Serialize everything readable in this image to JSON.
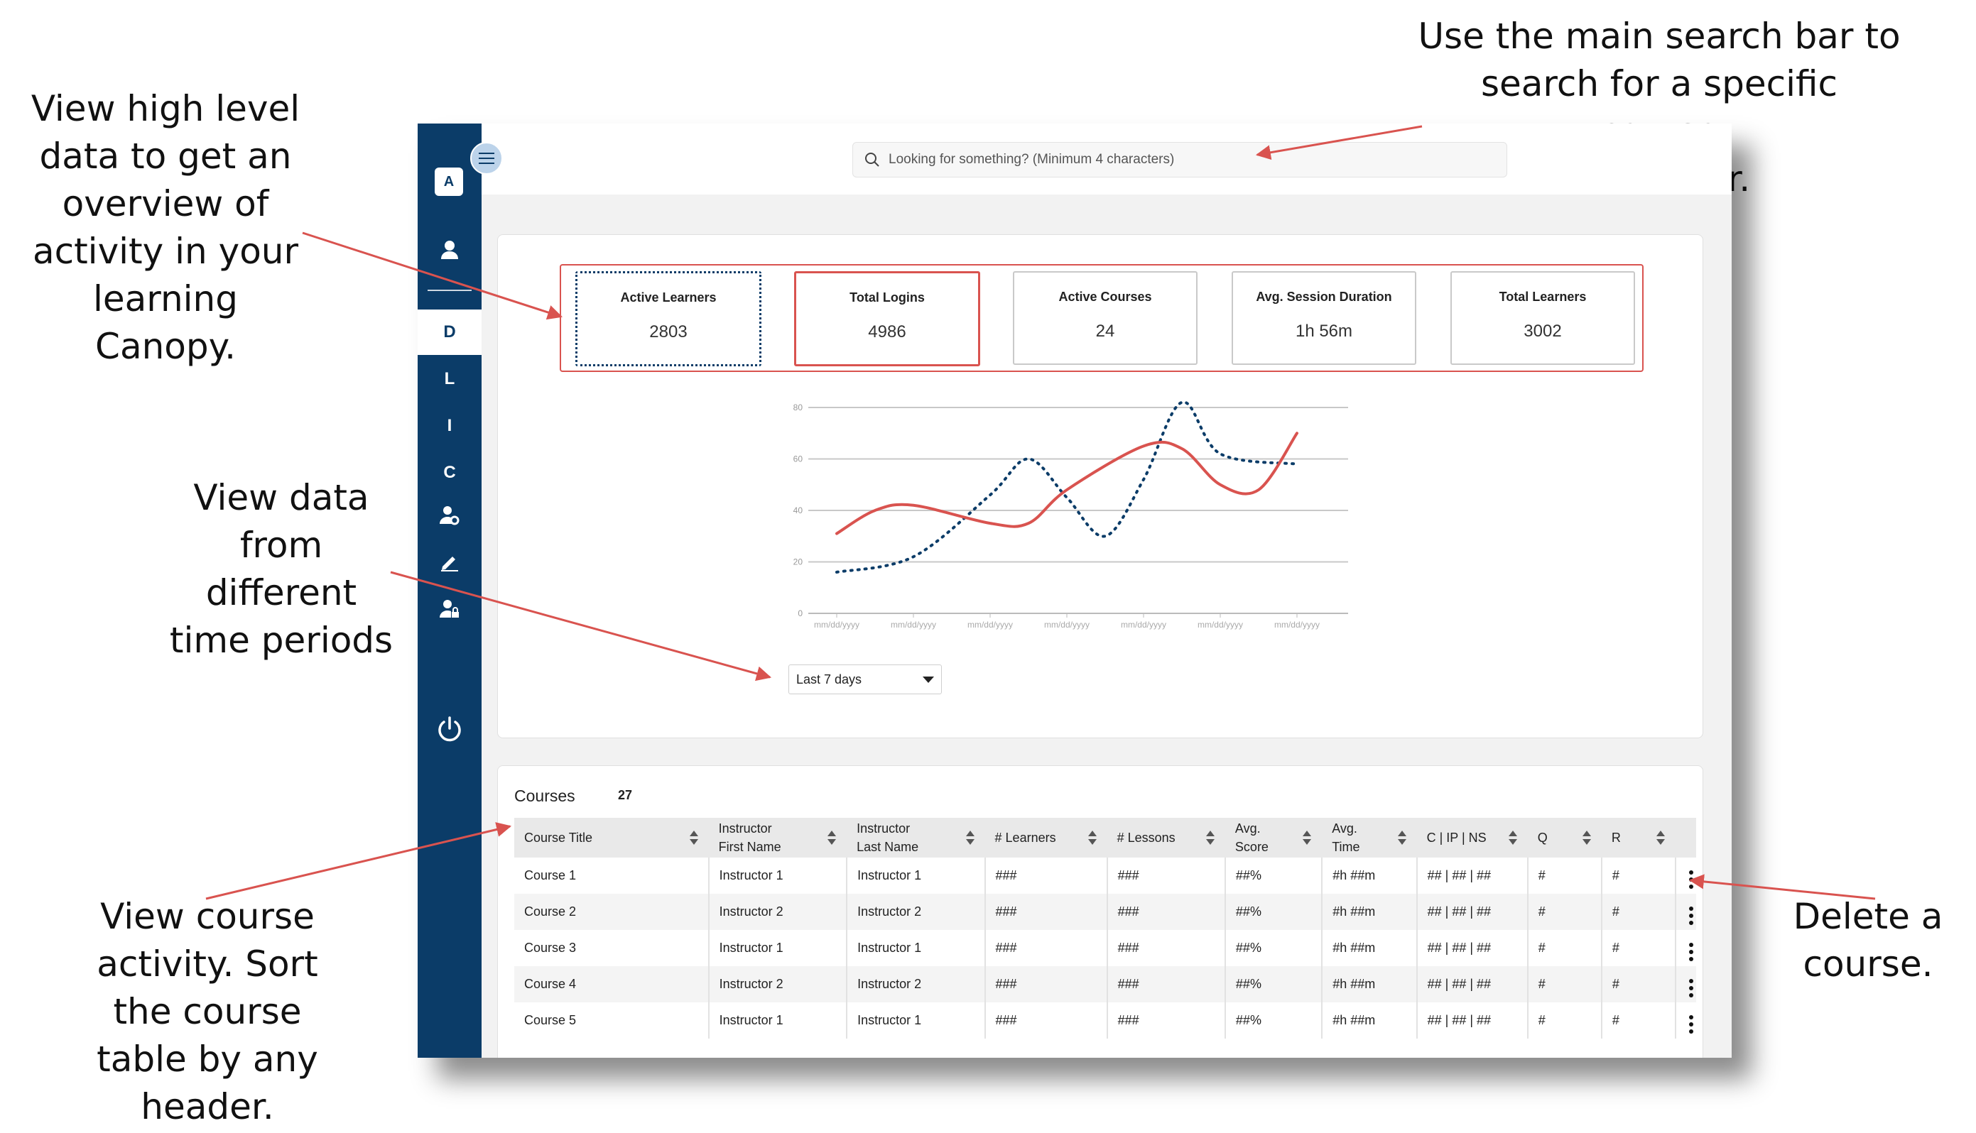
{
  "annotations": {
    "search_note": "Use the main search bar to\nsearch for a specific course\nor learner.",
    "overview_note": "View high level\ndata to get an\noverview of\nactivity in your\nlearning\nCanopy.",
    "time_note": "View data\nfrom\ndifferent\ntime periods",
    "table_note": "View course\nactivity. Sort\nthe course\ntable by any\nheader.",
    "delete_note": "Delete a\ncourse."
  },
  "sidebar": {
    "avatar_letter": "A",
    "items": [
      "D",
      "L",
      "I",
      "C"
    ],
    "active_item": "D"
  },
  "search": {
    "placeholder": "Looking for something? (Minimum 4 characters)"
  },
  "stats": [
    {
      "label": "Active Learners",
      "value": "2803"
    },
    {
      "label": "Total Logins",
      "value": "4986"
    },
    {
      "label": "Active Courses",
      "value": "24"
    },
    {
      "label": "Avg. Session Duration",
      "value": "1h 56m"
    },
    {
      "label": "Total Learners",
      "value": "3002"
    }
  ],
  "chart_data": {
    "type": "line",
    "x": [
      "mm/dd/yyyy",
      "mm/dd/yyyy",
      "mm/dd/yyyy",
      "mm/dd/yyyy",
      "mm/dd/yyyy",
      "mm/dd/yyyy",
      "mm/dd/yyyy"
    ],
    "yticks": [
      "0",
      "20",
      "40",
      "60",
      "80"
    ],
    "ylim": [
      0,
      80
    ],
    "grid": true,
    "series": [
      {
        "style": "dotted",
        "color": "#0b3c68",
        "points": [
          [
            0,
            16
          ],
          [
            1,
            22
          ],
          [
            2,
            46
          ],
          [
            2.5,
            60
          ],
          [
            3,
            45
          ],
          [
            3.5,
            30
          ],
          [
            4,
            52
          ],
          [
            4.5,
            82
          ],
          [
            5,
            62
          ],
          [
            6,
            58
          ]
        ]
      },
      {
        "style": "solid",
        "color": "#d9534f",
        "points": [
          [
            0,
            31
          ],
          [
            0.5,
            40
          ],
          [
            1,
            42
          ],
          [
            2,
            35
          ],
          [
            2.5,
            35
          ],
          [
            3,
            48
          ],
          [
            4,
            65
          ],
          [
            4.5,
            64
          ],
          [
            5,
            50
          ],
          [
            5.5,
            48
          ],
          [
            6,
            70
          ]
        ]
      }
    ]
  },
  "range_select": {
    "value": "Last 7 days"
  },
  "courses": {
    "title": "Courses",
    "count": "27",
    "headers": [
      [
        "Course Title"
      ],
      [
        "Instructor",
        "First Name"
      ],
      [
        "Instructor",
        "Last Name"
      ],
      [
        "# Learners"
      ],
      [
        "# Lessons"
      ],
      [
        "Avg.",
        "Score"
      ],
      [
        "Avg.",
        "Time"
      ],
      [
        "C | IP | NS"
      ],
      [
        "Q"
      ],
      [
        "R"
      ]
    ],
    "rows": [
      [
        "Course 1",
        "Instructor 1",
        "Instructor 1",
        "###",
        "###",
        "##%",
        "#h ##m",
        "## | ## | ##",
        "#",
        "#"
      ],
      [
        "Course 2",
        "Instructor 2",
        "Instructor 2",
        "###",
        "###",
        "##%",
        "#h ##m",
        "## | ## | ##",
        "#",
        "#"
      ],
      [
        "Course 3",
        "Instructor 1",
        "Instructor 1",
        "###",
        "###",
        "##%",
        "#h ##m",
        "## | ## | ##",
        "#",
        "#"
      ],
      [
        "Course 4",
        "Instructor 2",
        "Instructor 2",
        "###",
        "###",
        "##%",
        "#h ##m",
        "## | ## | ##",
        "#",
        "#"
      ],
      [
        "Course 5",
        "Instructor 1",
        "Instructor 1",
        "###",
        "###",
        "##%",
        "#h ##m",
        "## | ## | ##",
        "#",
        "#"
      ]
    ]
  },
  "icons": {
    "menu": "hamburger-icon",
    "user": "user-icon",
    "search": "search-icon",
    "user_gear": "user-gear-icon",
    "edit": "pencil-icon",
    "user_lock": "user-lock-icon",
    "power": "power-icon",
    "row_menu": "kebab-menu-icon"
  }
}
